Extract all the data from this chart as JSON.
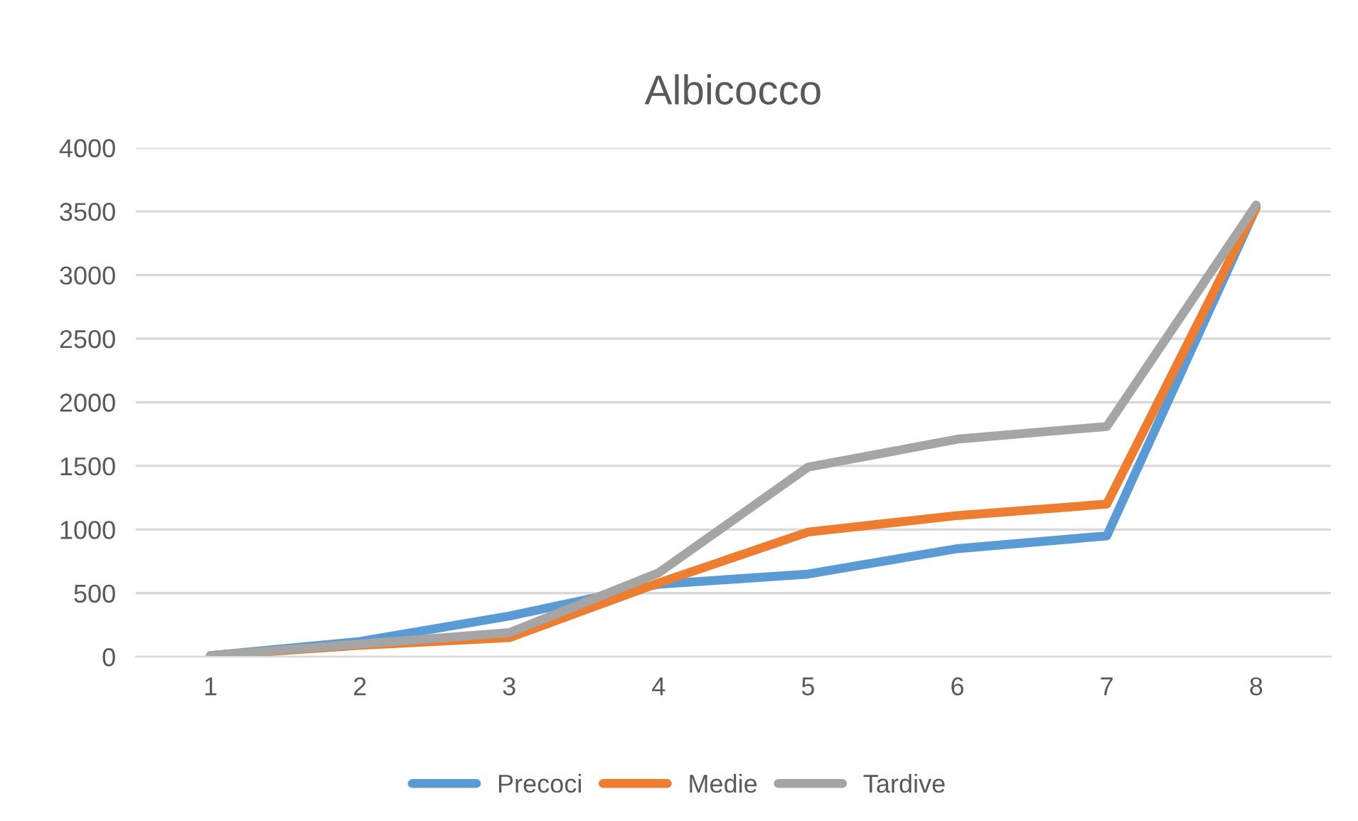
{
  "chart_data": {
    "type": "line",
    "title": "Albicocco",
    "categories": [
      "1",
      "2",
      "3",
      "4",
      "5",
      "6",
      "7",
      "8"
    ],
    "series": [
      {
        "name": "Precoci",
        "color": "#5b9bd5",
        "values": [
          10,
          120,
          320,
          570,
          650,
          850,
          950,
          3530
        ]
      },
      {
        "name": "Medie",
        "color": "#ed7d31",
        "values": [
          10,
          90,
          150,
          580,
          980,
          1110,
          1200,
          3530
        ]
      },
      {
        "name": "Tardive",
        "color": "#a5a5a5",
        "values": [
          10,
          100,
          190,
          660,
          1490,
          1710,
          1810,
          3550
        ]
      }
    ],
    "ylim": [
      0,
      4000
    ],
    "yticks": [
      0,
      500,
      1000,
      1500,
      2000,
      2500,
      3000,
      3500,
      4000
    ],
    "grid": "y",
    "legend": "bottom",
    "line_style": "solid",
    "marker": "none"
  }
}
